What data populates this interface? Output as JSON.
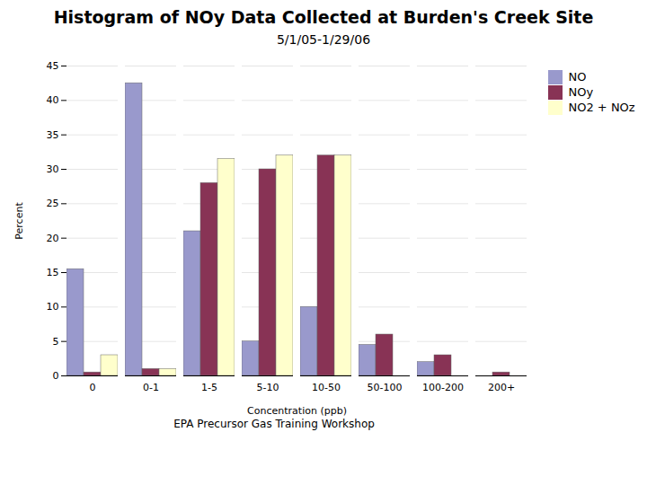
{
  "chart_data": {
    "type": "bar",
    "title": "Histogram of NOy Data Collected at Burden's Creek Site",
    "subtitle": "5/1/05-1/29/06",
    "annotations": [
      "EPA Precursor Gas Training Workshop"
    ],
    "xlabel": "Concentration (ppb)",
    "ylabel": "Percent",
    "categories": [
      "0",
      "0-1",
      "1-5",
      "5-10",
      "10-50",
      "50-100",
      "100-200",
      "200+"
    ],
    "series": [
      {
        "name": "NO",
        "color": "#9999cc",
        "values": [
          15.5,
          42.5,
          21.0,
          5.0,
          10.0,
          4.5,
          2.0,
          0.0
        ]
      },
      {
        "name": "NOy",
        "color": "#883355",
        "values": [
          0.5,
          1.0,
          28.0,
          30.0,
          32.0,
          6.0,
          3.0,
          0.5
        ]
      },
      {
        "name": "NO2 + NOz",
        "color": "#ffffcc",
        "values": [
          3.0,
          1.0,
          31.5,
          32.0,
          32.0,
          0.0,
          0.0,
          0.0
        ]
      }
    ],
    "ylim": [
      0,
      45
    ],
    "yticks": [
      0,
      5,
      10,
      15,
      20,
      25,
      30,
      35,
      40,
      45
    ],
    "grid": true,
    "legend": "right"
  }
}
